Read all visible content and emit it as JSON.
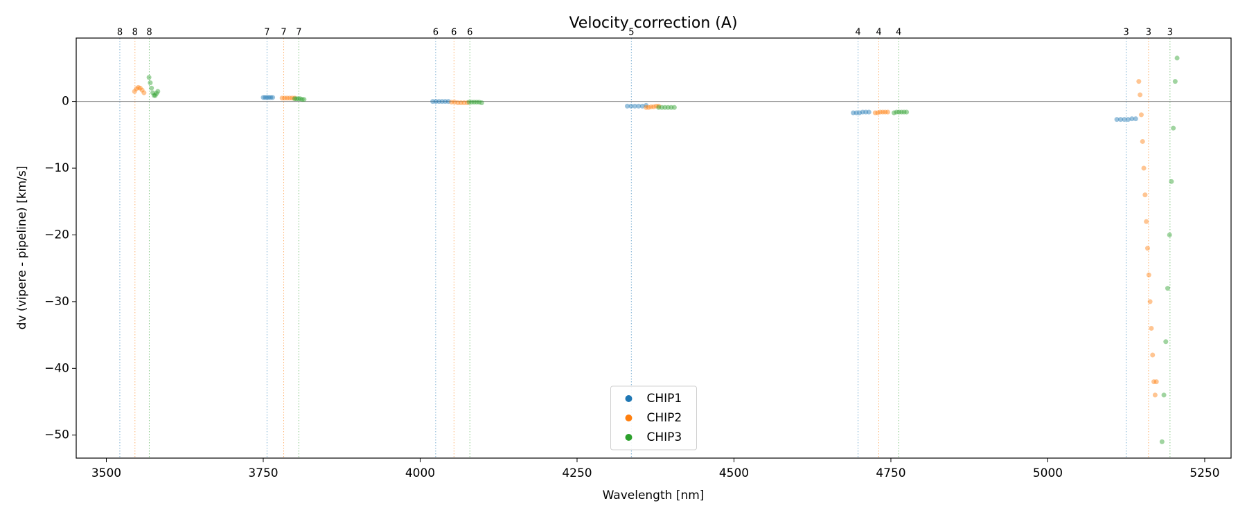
{
  "chart_data": {
    "type": "scatter",
    "title": "Velocity correction (A)",
    "xlabel": "Wavelength [nm]",
    "ylabel": "dv (vipere - pipeline) [km/s]",
    "xlim": [
      3452,
      5292
    ],
    "ylim": [
      -53.45,
      9.5
    ],
    "xticks": [
      3500,
      3750,
      4000,
      4250,
      4500,
      4750,
      5000,
      5250
    ],
    "yticks": [
      0,
      {
        "value": -10,
        "label": "−10"
      },
      {
        "value": -20,
        "label": "−20"
      },
      {
        "value": -30,
        "label": "−30"
      },
      {
        "value": -40,
        "label": "−40"
      },
      {
        "value": -50,
        "label": "−50"
      }
    ],
    "hline": 0,
    "legend": "lower center",
    "series": [
      {
        "name": "CHIP1",
        "color": "#1f77b4",
        "x": [
          3750,
          3753,
          3756,
          3759,
          3762,
          3765,
          4020,
          4025,
          4030,
          4035,
          4040,
          4045,
          4330,
          4336,
          4342,
          4348,
          4354,
          4360,
          4690,
          4695,
          4700,
          4705,
          4710,
          4715,
          5110,
          5116,
          5122,
          5128,
          5134,
          5140
        ],
        "values": [
          0.6,
          0.6,
          0.6,
          0.6,
          0.6,
          0.6,
          0,
          0,
          0,
          0,
          0,
          0,
          -0.7,
          -0.7,
          -0.7,
          -0.7,
          -0.7,
          -0.6,
          -1.7,
          -1.7,
          -1.7,
          -1.6,
          -1.6,
          -1.6,
          -2.7,
          -2.7,
          -2.7,
          -2.7,
          -2.6,
          -2.6
        ],
        "order_x": [
          3521.5,
          3756,
          4024.7,
          4336.5,
          4697.7,
          5125
        ],
        "order_labels": [
          8,
          7,
          6,
          5,
          4,
          3
        ]
      },
      {
        "name": "CHIP2",
        "color": "#ff7f0e",
        "x": [
          3545,
          3548,
          3551,
          3554,
          3557,
          3560,
          3780,
          3784,
          3788,
          3792,
          3796,
          3800,
          4050,
          4055,
          4060,
          4065,
          4070,
          4075,
          4360,
          4364,
          4368,
          4372,
          4376,
          4380,
          4725,
          4729,
          4733,
          4737,
          4741,
          4745,
          5145,
          5147,
          5149,
          5151,
          5153,
          5155,
          5157,
          5159,
          5161,
          5163,
          5165,
          5167,
          5169,
          5171,
          5173
        ],
        "values": [
          1.5,
          1.9,
          2.1,
          2.0,
          1.7,
          1.3,
          0.5,
          0.5,
          0.5,
          0.5,
          0.5,
          0.5,
          -0.1,
          -0.1,
          -0.2,
          -0.2,
          -0.2,
          -0.2,
          -0.9,
          -0.9,
          -0.8,
          -0.8,
          -0.7,
          -0.7,
          -1.7,
          -1.7,
          -1.6,
          -1.6,
          -1.6,
          -1.6,
          3.0,
          1.0,
          -2,
          -6,
          -10,
          -14,
          -18,
          -22,
          -26,
          -30,
          -34,
          -38,
          -42,
          -44,
          -42
        ],
        "order_x": [
          3545.6,
          3782.6,
          4053.9,
          4730.7,
          5160.5
        ],
        "order_labels": [
          8,
          7,
          6,
          4,
          3
        ]
      },
      {
        "name": "CHIP3",
        "color": "#2ca02c",
        "x": [
          3568,
          3570,
          3572,
          3574,
          3576,
          3578,
          3580,
          3582,
          3800,
          3803,
          3806,
          3809,
          3812,
          3815,
          4078,
          4082,
          4086,
          4090,
          4094,
          4098,
          4380,
          4385,
          4390,
          4395,
          4400,
          4405,
          4755,
          4759,
          4763,
          4767,
          4771,
          4775,
          5182,
          5185,
          5188,
          5191,
          5194,
          5197,
          5200,
          5203,
          5206
        ],
        "values": [
          3.6,
          2.8,
          2.0,
          1.3,
          0.9,
          0.9,
          1.2,
          1.5,
          0.4,
          0.4,
          0.4,
          0.4,
          0.3,
          0.3,
          -0.1,
          -0.1,
          -0.1,
          -0.1,
          -0.1,
          -0.2,
          -0.9,
          -0.9,
          -0.9,
          -0.9,
          -0.9,
          -0.9,
          -1.7,
          -1.6,
          -1.6,
          -1.6,
          -1.6,
          -1.6,
          -51,
          -44,
          -36,
          -28,
          -20,
          -12,
          -4,
          3,
          6.5
        ],
        "order_x": [
          3568.4,
          3806.7,
          4079.2,
          4762.4,
          5194.7
        ],
        "order_labels": [
          8,
          7,
          6,
          4,
          3
        ]
      }
    ]
  }
}
